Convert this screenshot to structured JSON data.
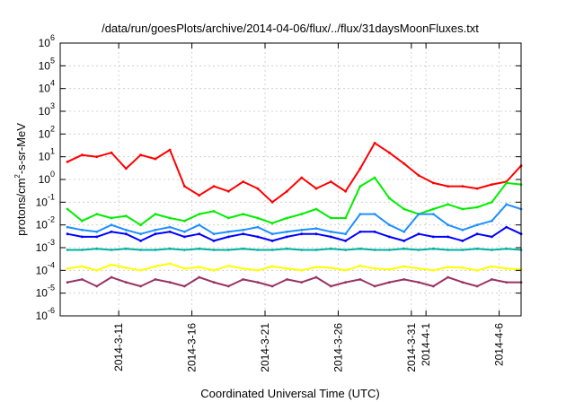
{
  "chart_data": {
    "type": "line",
    "title": "/data/run/goesPlots/archive/2014-04-06/flux/../flux/31daysMoonFluxes.txt",
    "xlabel": "Coordinated Universal Time (UTC)",
    "ylabel_parts": [
      "protons/cm",
      "2",
      "-s-sr-MeV"
    ],
    "yscale": "log",
    "ylim": [
      1e-06,
      1000000.0
    ],
    "xlim": [
      "2014-03-07",
      "2014-04-07T12:00"
    ],
    "grid": true,
    "y_ticks": [
      {
        "exp": "-6",
        "value": 1e-06
      },
      {
        "exp": "-5",
        "value": 1e-05
      },
      {
        "exp": "-4",
        "value": 0.0001
      },
      {
        "exp": "-3",
        "value": 0.001
      },
      {
        "exp": "-2",
        "value": 0.01
      },
      {
        "exp": "-1",
        "value": 0.1
      },
      {
        "exp": "0",
        "value": 1
      },
      {
        "exp": "1",
        "value": 10
      },
      {
        "exp": "2",
        "value": 100
      },
      {
        "exp": "3",
        "value": 1000
      },
      {
        "exp": "4",
        "value": 10000
      },
      {
        "exp": "5",
        "value": 100000
      },
      {
        "exp": "6",
        "value": 1000000
      }
    ],
    "x_ticks": [
      "2014-3-11",
      "2014-3-16",
      "2014-3-21",
      "2014-3-26",
      "2014-3-31",
      "2014-4-1",
      "2014-4-6"
    ],
    "x": [
      "2014-03-07",
      "2014-03-08",
      "2014-03-09",
      "2014-03-10",
      "2014-03-11",
      "2014-03-12",
      "2014-03-13",
      "2014-03-14",
      "2014-03-15",
      "2014-03-16",
      "2014-03-17",
      "2014-03-18",
      "2014-03-19",
      "2014-03-20",
      "2014-03-21",
      "2014-03-22",
      "2014-03-23",
      "2014-03-24",
      "2014-03-25",
      "2014-03-26",
      "2014-03-27",
      "2014-03-28",
      "2014-03-29",
      "2014-03-30",
      "2014-03-31",
      "2014-04-01",
      "2014-04-02",
      "2014-04-03",
      "2014-04-04",
      "2014-04-05",
      "2014-04-06",
      "2014-04-07"
    ],
    "series": [
      {
        "color": "#ff0000",
        "values": [
          6,
          12,
          10,
          15,
          3,
          12,
          8,
          20,
          0.5,
          0.2,
          0.5,
          0.3,
          0.8,
          0.4,
          0.1,
          0.3,
          1.2,
          0.4,
          0.8,
          0.3,
          3,
          40,
          15,
          5,
          1.5,
          0.7,
          0.5,
          0.5,
          0.4,
          0.6,
          0.8,
          4
        ]
      },
      {
        "color": "#00ee00",
        "values": [
          0.05,
          0.015,
          0.03,
          0.02,
          0.025,
          0.01,
          0.03,
          0.02,
          0.015,
          0.03,
          0.04,
          0.02,
          0.03,
          0.02,
          0.012,
          0.02,
          0.03,
          0.05,
          0.02,
          0.02,
          0.5,
          1.2,
          0.15,
          0.05,
          0.03,
          0.05,
          0.08,
          0.05,
          0.06,
          0.1,
          0.7,
          0.6
        ]
      },
      {
        "color": "#0000ff",
        "values": [
          0.004,
          0.003,
          0.003,
          0.005,
          0.004,
          0.002,
          0.004,
          0.005,
          0.003,
          0.004,
          0.002,
          0.003,
          0.004,
          0.003,
          0.002,
          0.003,
          0.004,
          0.004,
          0.003,
          0.002,
          0.005,
          0.005,
          0.003,
          0.002,
          0.004,
          0.003,
          0.003,
          0.002,
          0.004,
          0.003,
          0.008,
          0.004
        ]
      },
      {
        "color": "#1e90ff",
        "values": [
          0.008,
          0.006,
          0.005,
          0.01,
          0.006,
          0.004,
          0.006,
          0.008,
          0.005,
          0.01,
          0.004,
          0.005,
          0.006,
          0.008,
          0.004,
          0.005,
          0.006,
          0.007,
          0.005,
          0.004,
          0.03,
          0.03,
          0.01,
          0.005,
          0.03,
          0.03,
          0.01,
          0.006,
          0.01,
          0.015,
          0.08,
          0.05
        ]
      },
      {
        "color": "#00b0a0",
        "values": [
          0.0008,
          0.0008,
          0.0009,
          0.0008,
          0.0009,
          0.0008,
          0.0008,
          0.0009,
          0.0008,
          0.0009,
          0.0008,
          0.0008,
          0.0009,
          0.0008,
          0.0008,
          0.0009,
          0.0008,
          0.0008,
          0.0009,
          0.0008,
          0.0009,
          0.0008,
          0.0008,
          0.0009,
          0.0008,
          0.0009,
          0.0008,
          0.0008,
          0.0009,
          0.0008,
          0.0009,
          0.0008
        ]
      },
      {
        "color": "#ffff00",
        "values": [
          0.00012,
          0.00015,
          0.0001,
          0.00018,
          0.00013,
          0.0001,
          0.00015,
          0.0002,
          0.00012,
          0.00014,
          0.0001,
          0.00016,
          0.00012,
          0.0001,
          0.00015,
          0.00012,
          0.0001,
          0.00014,
          0.00013,
          0.0001,
          0.00016,
          0.00012,
          0.00011,
          0.00015,
          0.00012,
          0.0001,
          0.00014,
          0.00013,
          0.0001,
          0.00015,
          0.00012,
          0.00011
        ]
      },
      {
        "color": "#993366",
        "values": [
          3e-05,
          4e-05,
          2e-05,
          5e-05,
          3e-05,
          2e-05,
          4e-05,
          3e-05,
          2e-05,
          5e-05,
          3e-05,
          2e-05,
          4e-05,
          3e-05,
          2e-05,
          4e-05,
          3e-05,
          5e-05,
          2e-05,
          3e-05,
          4e-05,
          2e-05,
          3e-05,
          4e-05,
          3e-05,
          2e-05,
          5e-05,
          3e-05,
          2e-05,
          4e-05,
          3e-05,
          3e-05
        ]
      }
    ]
  }
}
